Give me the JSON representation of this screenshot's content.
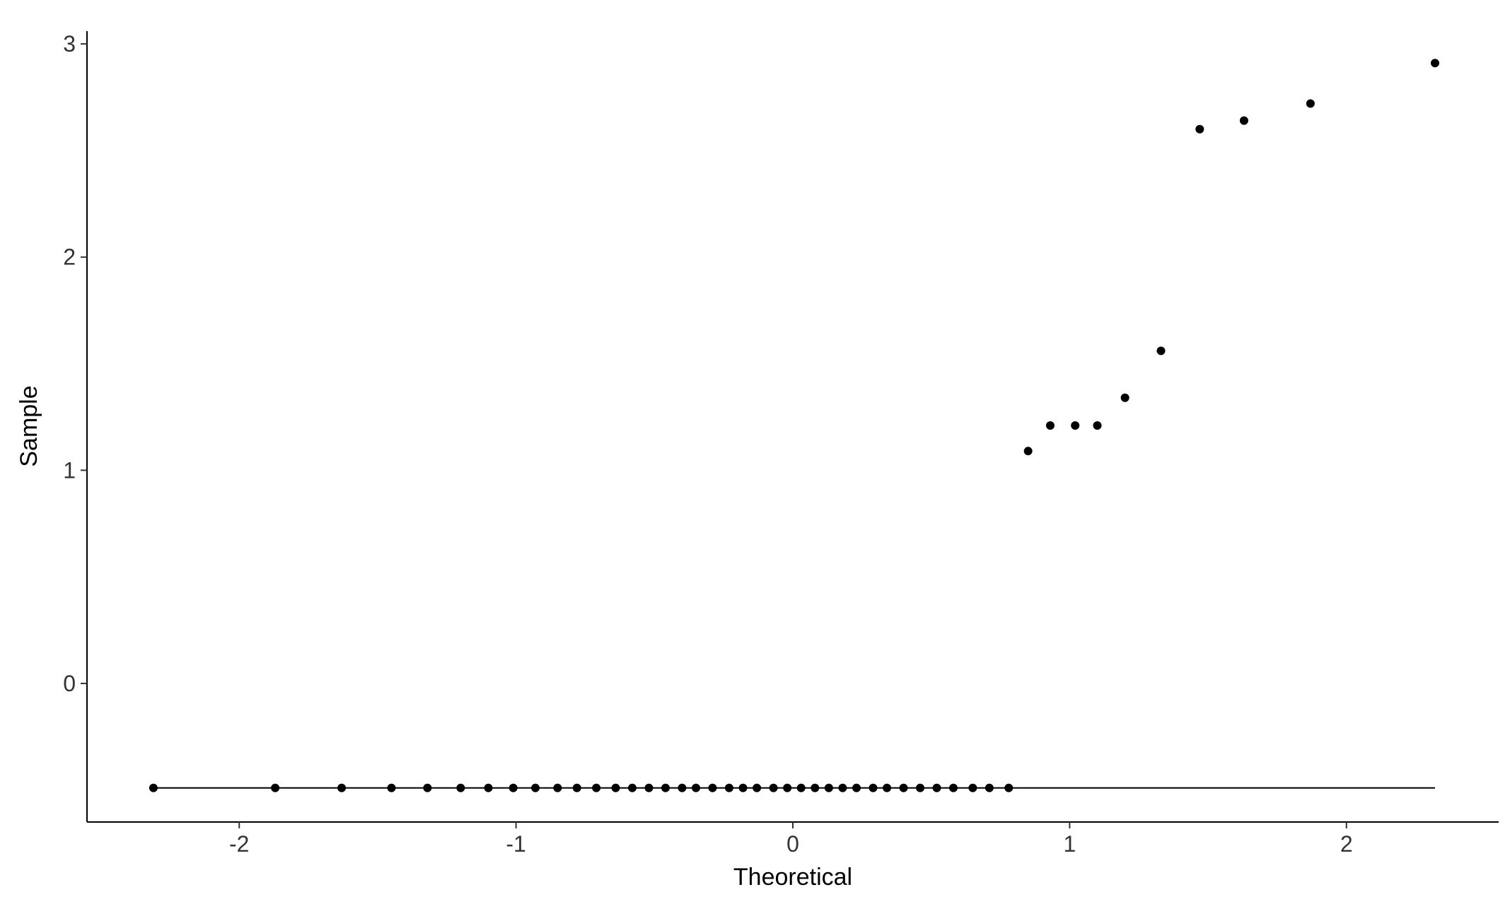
{
  "chart_data": {
    "type": "scatter",
    "x_label": "Theoretical",
    "y_label": "Sample",
    "x": [
      -2.31,
      -1.87,
      -1.63,
      -1.45,
      -1.32,
      -1.2,
      -1.1,
      -1.01,
      -0.93,
      -0.85,
      -0.78,
      -0.71,
      -0.64,
      -0.58,
      -0.52,
      -0.46,
      -0.4,
      -0.35,
      -0.29,
      -0.23,
      -0.18,
      -0.13,
      -0.07,
      -0.02,
      0.03,
      0.08,
      0.13,
      0.18,
      0.23,
      0.29,
      0.34,
      0.4,
      0.46,
      0.52,
      0.58,
      0.65,
      0.71,
      0.78,
      0.85,
      0.93,
      1.02,
      1.1,
      1.2,
      1.33,
      1.47,
      1.63,
      1.87,
      2.32
    ],
    "values": [
      -0.49,
      -0.49,
      -0.49,
      -0.49,
      -0.49,
      -0.49,
      -0.49,
      -0.49,
      -0.49,
      -0.49,
      -0.49,
      -0.49,
      -0.49,
      -0.49,
      -0.49,
      -0.49,
      -0.49,
      -0.49,
      -0.49,
      -0.49,
      -0.49,
      -0.49,
      -0.49,
      -0.49,
      -0.49,
      -0.49,
      -0.49,
      -0.49,
      -0.49,
      -0.49,
      -0.49,
      -0.49,
      -0.49,
      -0.49,
      -0.49,
      -0.49,
      -0.49,
      -0.49,
      1.09,
      1.21,
      1.21,
      1.21,
      1.34,
      1.56,
      2.6,
      2.64,
      2.72,
      2.91
    ],
    "color": "#000000",
    "reference_line": {
      "x": [
        -2.31,
        2.32
      ],
      "values": [
        -0.49,
        -0.49
      ],
      "color": "#000000"
    },
    "xlim": [
      -2.55,
      2.55
    ],
    "xticks": [
      -2,
      -1,
      0,
      1,
      2
    ],
    "ylim": [
      -0.65,
      3.06
    ],
    "yticks": [
      0,
      1,
      2,
      3
    ],
    "grid": false
  }
}
